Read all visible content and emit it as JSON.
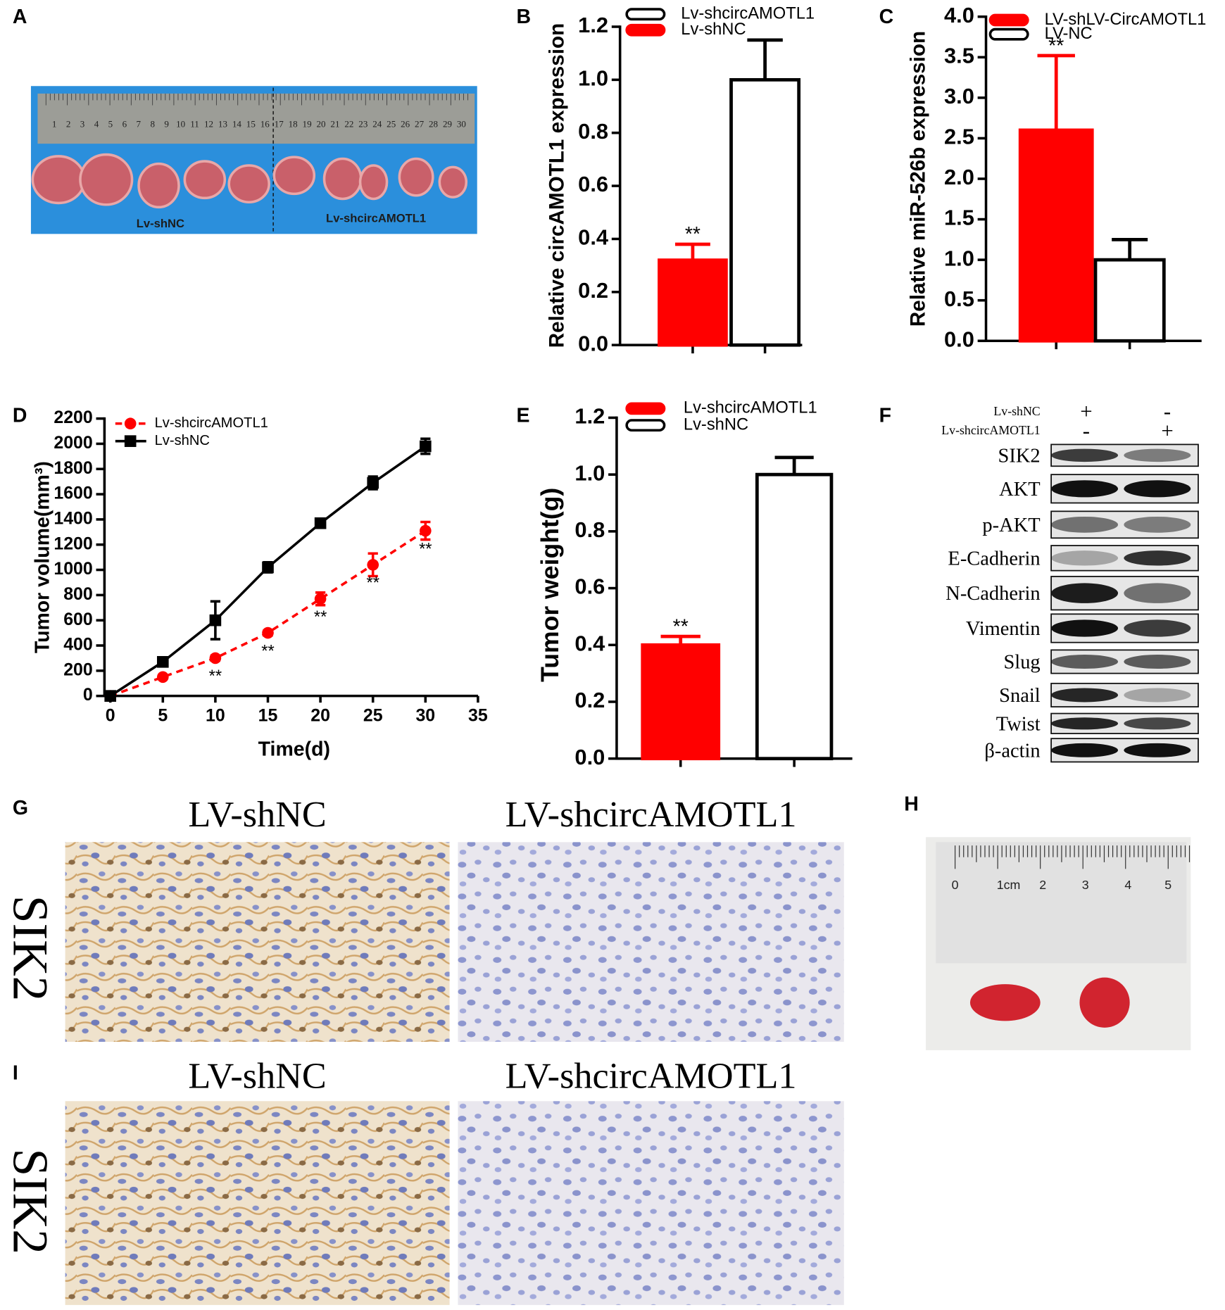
{
  "panel_labels": [
    "A",
    "B",
    "C",
    "D",
    "E",
    "F",
    "G",
    "H",
    "I"
  ],
  "chart_data": [
    {
      "type": "bar",
      "y_label": "Relative circAMOTL1 expression",
      "categories": [
        null,
        null
      ],
      "series": [
        {
          "name": "Lv-shcircAMOTL1",
          "color": "#ffffff",
          "values": [
            null,
            1.0
          ],
          "errors": [
            null,
            0.15
          ]
        },
        {
          "name": "Lv-shNC",
          "color": "#ff0000",
          "values": [
            0.32,
            null
          ],
          "errors": [
            0.06,
            null
          ],
          "significance": [
            "**",
            null
          ]
        }
      ],
      "ylim": [
        0,
        1.2
      ],
      "yticks": [
        {
          "value": 0,
          "label": "0.0"
        },
        0.2,
        0.4,
        0.6,
        0.8,
        {
          "value": 1,
          "label": "1.0"
        },
        1.2
      ]
    },
    {
      "type": "bar",
      "y_label": "Relative miR-526b expression",
      "categories": [
        null,
        null
      ],
      "series": [
        {
          "name": "LV-shLV-CircAMOTL1",
          "color": "#ff0000",
          "values": [
            2.6,
            null
          ],
          "errors": [
            0.92,
            null
          ],
          "significance": [
            "**",
            null
          ]
        },
        {
          "name": "LV-NC",
          "color": "#ffffff",
          "values": [
            null,
            1.0
          ],
          "errors": [
            null,
            0.25
          ]
        }
      ],
      "ylim": [
        0,
        4
      ],
      "yticks": [
        {
          "value": 0,
          "label": "0.0"
        },
        0.5,
        {
          "value": 1,
          "label": "1.0"
        },
        1.5,
        {
          "value": 2,
          "label": "2.0"
        },
        2.5,
        {
          "value": 3,
          "label": "3.0"
        },
        3.5,
        {
          "value": 4,
          "label": "4.0"
        }
      ]
    },
    {
      "type": "line",
      "y_label": "Tumor volume(mm³)",
      "x_label": "Time(d)",
      "x": [
        0,
        5,
        10,
        15,
        20,
        25,
        30
      ],
      "series": [
        {
          "name": "Lv-shcircAMOTL1",
          "color": "#ff0000",
          "marker": "circle",
          "line_style": "dashed",
          "values": [
            0,
            150,
            300,
            500,
            770,
            1040,
            1310
          ],
          "errors": [
            0,
            0,
            20,
            20,
            50,
            90,
            70
          ],
          "significance": [
            null,
            null,
            "**",
            "**",
            "**",
            "**",
            "**"
          ]
        },
        {
          "name": "Lv-shNC",
          "color": "#000000",
          "marker": "square",
          "line_style": "solid",
          "values": [
            0,
            270,
            600,
            1020,
            1370,
            1690,
            1980
          ],
          "errors": [
            0,
            0,
            150,
            40,
            20,
            50,
            60
          ]
        }
      ],
      "xlim": [
        0,
        35
      ],
      "xticks": [
        0,
        5,
        10,
        15,
        20,
        25,
        30,
        35
      ],
      "ylim": [
        0,
        2200
      ],
      "yticks": [
        0,
        200,
        400,
        600,
        800,
        1000,
        1200,
        1400,
        1600,
        1800,
        2000,
        2200
      ]
    },
    {
      "type": "bar",
      "y_label": "Tumor weight(g)",
      "categories": [
        null,
        null
      ],
      "series": [
        {
          "name": "Lv-shcircAMOTL1",
          "color": "#ff0000",
          "values": [
            0.4,
            null
          ],
          "errors": [
            0.03,
            null
          ],
          "significance": [
            "**",
            null
          ]
        },
        {
          "name": "Lv-shNC",
          "color": "#ffffff",
          "values": [
            null,
            1.0
          ],
          "errors": [
            null,
            0.06
          ]
        }
      ],
      "ylim": [
        0,
        1.2
      ],
      "yticks": [
        {
          "value": 0,
          "label": "0.0"
        },
        0.2,
        0.4,
        0.6,
        0.8,
        {
          "value": 1,
          "label": "1.0"
        },
        1.2
      ]
    }
  ],
  "photo_a": {
    "ruler_numbers": [
      "1",
      "2",
      "3",
      "4",
      "5",
      "6",
      "7",
      "8",
      "9",
      "10",
      "11",
      "12",
      "13",
      "14",
      "15",
      "16",
      "17",
      "18",
      "19",
      "20",
      "21",
      "22",
      "23",
      "24",
      "25",
      "26",
      "27",
      "28",
      "29",
      "30"
    ],
    "labels": [
      "Lv-shNC",
      "Lv-shcircAMOTL1"
    ]
  },
  "blot_f": {
    "conditions": [
      {
        "name": "Lv-shNC",
        "marks": [
          "+",
          "-"
        ]
      },
      {
        "name": "Lv-shcircAMOTL1",
        "marks": [
          "-",
          "+"
        ]
      }
    ],
    "proteins": [
      "SIK2",
      "AKT",
      "p-AKT",
      "E-Cadherin",
      "N-Cadherin",
      "Vimentin",
      "Slug",
      "Snail",
      "Twist",
      "β-actin"
    ]
  },
  "ihc_g": {
    "columns": [
      "LV-shNC",
      "LV-shcircAMOTL1"
    ],
    "row_label": "SIK2"
  },
  "ihc_i": {
    "columns": [
      "LV-shNC",
      "LV-shcircAMOTL1"
    ],
    "row_label": "SIK2"
  },
  "photo_h": {
    "ruler_numbers": [
      "0",
      "1cm",
      "2",
      "3",
      "4",
      "5"
    ]
  }
}
